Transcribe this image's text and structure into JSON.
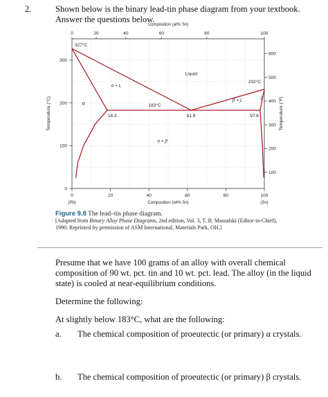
{
  "question": {
    "number": "2.",
    "prompt": "Shown below is the binary lead-tin phase diagram from your textbook. Answer the questions below."
  },
  "figure": {
    "number": "Figure 9.8",
    "title": "The lead–tin phase diagram.",
    "source_line1_prefix": "[Adapted from ",
    "source_book": "Binary Alloy Phase Diagrams",
    "source_line1_suffix": ", 2nd edition, Vol. 3, T. B. Massalski (Editor-in-Chief),",
    "source_line2": "1990. Reprinted by permission of ASM International, Materials Park, OH.]"
  },
  "chart_data": {
    "type": "line",
    "title": "",
    "top_axis_title": "Composition (at% Sn)",
    "top_ticks": [
      "0",
      "20",
      "40",
      "60",
      "80",
      "100"
    ],
    "xlabel": "Composition (wt% Sn)",
    "x_ticks": [
      "0",
      "20",
      "40",
      "60",
      "80",
      "100"
    ],
    "x_end_labels": [
      "(Pb)",
      "(Sn)"
    ],
    "xlim": [
      0,
      100
    ],
    "ylabel": "Temperature (°C)",
    "y_ticks": [
      "0",
      "100",
      "200",
      "300"
    ],
    "ylim": [
      0,
      350
    ],
    "right_axis_label": "Temperature (°F)",
    "right_ticks": [
      "100",
      "200",
      "300",
      "400",
      "500",
      "600"
    ],
    "series": [
      {
        "values": [
          [
            0,
            327
          ],
          [
            61.9,
            183
          ]
        ]
      },
      {
        "values": [
          [
            61.9,
            183
          ],
          [
            100,
            232
          ]
        ]
      },
      {
        "values": [
          [
            0,
            327
          ],
          [
            18.3,
            183
          ]
        ]
      },
      {
        "values": [
          [
            18.3,
            183
          ],
          [
            12,
            150
          ],
          [
            6,
            100
          ],
          [
            3,
            60
          ],
          [
            2,
            25
          ]
        ]
      },
      {
        "values": [
          [
            97.8,
            183
          ],
          [
            100,
            232
          ]
        ]
      },
      {
        "values": [
          [
            97.8,
            183
          ],
          [
            99,
            100
          ],
          [
            99.7,
            25
          ]
        ]
      },
      {
        "values": [
          [
            18.3,
            183
          ],
          [
            97.8,
            183
          ]
        ]
      }
    ],
    "annotations": {
      "pb_melt": "327°C",
      "sn_melt": "232°C",
      "eutectic_temp": "183°C",
      "alpha_limit": "18.3",
      "eutectic_comp": "61.9",
      "beta_limit": "97.8",
      "liquid": "Liquid",
      "alpha_plus_l": "α + L",
      "beta_plus_l": "β + L",
      "alpha": "α",
      "beta": "β",
      "alpha_plus_beta": "α + β"
    },
    "line_color": "#a8242a",
    "grid": true
  },
  "problem": {
    "statement": "Presume that we have 100 grams of an alloy with overall chemical composition of 90 wt. pct. tin and 10 wt. pct. lead. The alloy (in the liquid state) is cooled at near-equilibrium conditions.",
    "determine": "Determine the following:",
    "condition": "At slightly below 183°C, what are the following:",
    "items": [
      {
        "letter": "a.",
        "text": "The chemical composition of proeutectic (or primary) α crystals."
      },
      {
        "letter": "b.",
        "text": "The chemical composition of proeutectic (or primary) β crystals."
      }
    ]
  }
}
